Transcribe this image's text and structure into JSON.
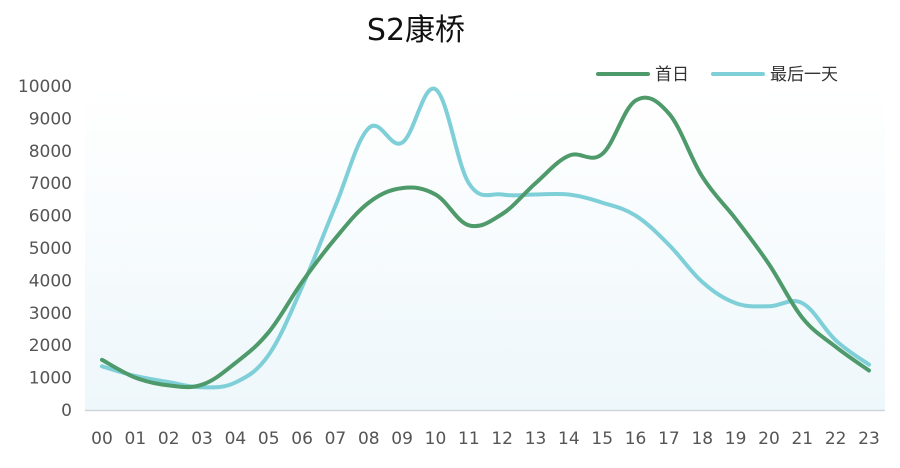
{
  "chart_data": {
    "type": "line",
    "title": "S2康桥",
    "xlabel": "",
    "ylabel": "",
    "categories": [
      "00",
      "01",
      "02",
      "03",
      "04",
      "05",
      "06",
      "07",
      "08",
      "09",
      "10",
      "11",
      "12",
      "13",
      "14",
      "15",
      "16",
      "17",
      "18",
      "19",
      "20",
      "21",
      "22",
      "23"
    ],
    "yticks": [
      "0",
      "1000",
      "2000",
      "3000",
      "4000",
      "5000",
      "6000",
      "7000",
      "8000",
      "9000",
      "10000"
    ],
    "ylim": [
      0,
      10000
    ],
    "legend_position": "top-right",
    "series": [
      {
        "name": "首日",
        "color": "#4e9a6a",
        "values": [
          1550,
          1000,
          760,
          780,
          1450,
          2400,
          3950,
          5300,
          6400,
          6850,
          6650,
          5700,
          6050,
          7000,
          7850,
          7900,
          9550,
          9150,
          7200,
          5900,
          4500,
          2850,
          1950,
          1220
        ]
      },
      {
        "name": "最后一天",
        "color": "#7fcfd8",
        "values": [
          1350,
          1050,
          860,
          700,
          850,
          1700,
          3800,
          6300,
          8700,
          8250,
          9900,
          7000,
          6650,
          6650,
          6650,
          6400,
          6000,
          5100,
          3950,
          3300,
          3200,
          3300,
          2150,
          1400
        ]
      }
    ]
  }
}
